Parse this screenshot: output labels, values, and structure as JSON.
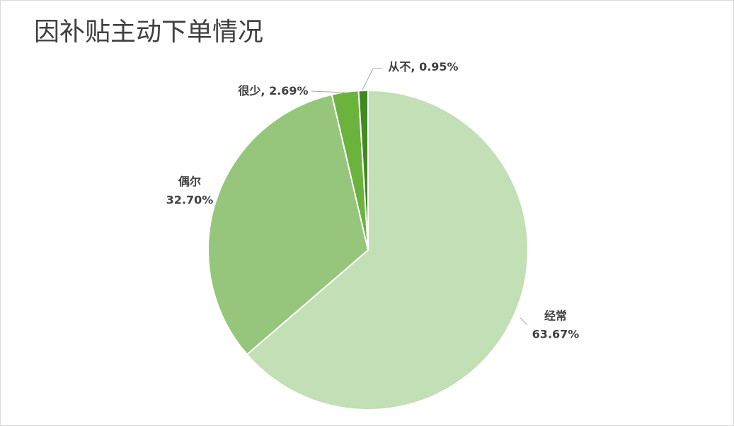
{
  "chart_data": {
    "type": "pie",
    "title": "因补贴主动下单情况",
    "categories": [
      "经常",
      "偶尔",
      "很少",
      "从不"
    ],
    "values": [
      63.67,
      32.7,
      2.69,
      0.95
    ],
    "value_labels": [
      "63.67%",
      "32.70%",
      "2.69%",
      "0.95%"
    ],
    "label_separator": ", ",
    "colors": [
      "#c2dfb5",
      "#95c67b",
      "#6cb33e",
      "#3f8a22"
    ]
  }
}
